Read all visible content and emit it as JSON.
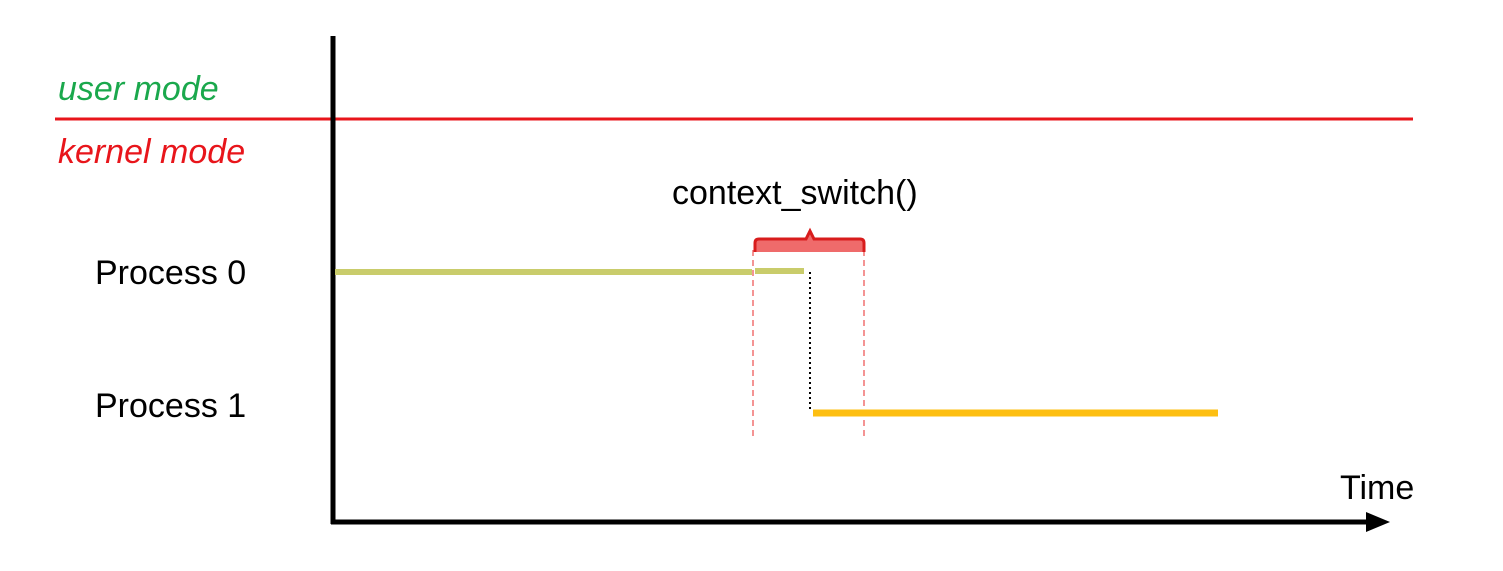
{
  "labels": {
    "user_mode": "user mode",
    "kernel_mode": "kernel mode",
    "process0": "Process 0",
    "process1": "Process 1",
    "context_switch": "context_switch()",
    "time_axis": "Time"
  },
  "colors": {
    "user_mode_text": "#1aa84c",
    "kernel_mode_text": "#e8151b",
    "mode_boundary_line": "#e8151b",
    "process0_bar": "#c9cc6b",
    "process1_bar": "#fdbf12",
    "bracket_fill": "#ef6b6b",
    "bracket_stroke": "#d81c1c",
    "guide_dashed": "#f07070",
    "transition_dotted": "#000000",
    "axis": "#000000",
    "text": "#000000"
  }
}
